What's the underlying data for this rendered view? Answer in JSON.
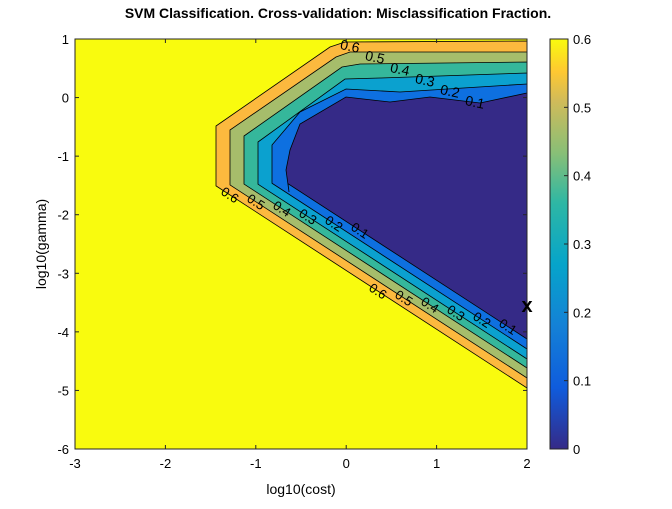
{
  "chart_data": {
    "type": "contour",
    "title": "SVM Classification. Cross-validation: Misclassification Fraction.",
    "xlabel": "log10(cost)",
    "ylabel": "log10(gamma)",
    "xlim": [
      -3,
      2
    ],
    "ylim": [
      -6,
      1
    ],
    "xticks": [
      "-3",
      "-2",
      "-1",
      "0",
      "1",
      "2"
    ],
    "yticks": [
      "1",
      "0",
      "-1",
      "-2",
      "-3",
      "-4",
      "-5",
      "-6"
    ],
    "levels": [
      0.1,
      0.2,
      0.3,
      0.4,
      0.5,
      0.6
    ],
    "level_labels": [
      "0.1",
      "0.2",
      "0.3",
      "0.4",
      "0.5",
      "0.6"
    ],
    "colorbar": {
      "range": [
        0,
        0.6
      ],
      "ticks": [
        "0",
        "0.1",
        "0.2",
        "0.3",
        "0.4",
        "0.5",
        "0.6"
      ],
      "colormap": "parula"
    },
    "band_colors": [
      "#f9fb0e",
      "#fcb93e",
      "#a6bd6b",
      "#35b79b",
      "#0ba1cf",
      "#0e70e0",
      "#352a87"
    ],
    "marker": {
      "label": "x",
      "x": 2,
      "y": -3.6
    },
    "grid": false
  }
}
